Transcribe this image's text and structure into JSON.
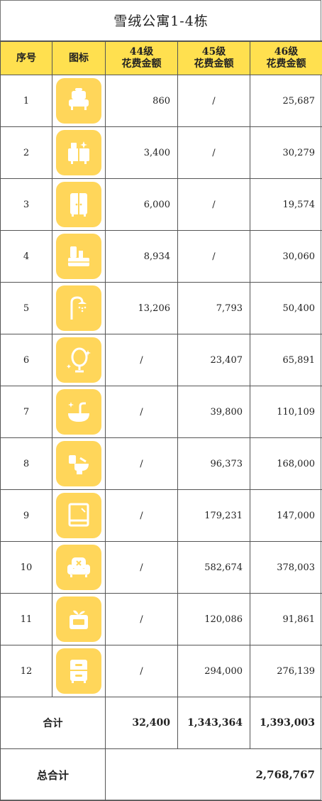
{
  "title": "雪绒公寓1-4栋",
  "header": {
    "col_index": "序号",
    "col_icon": "图标",
    "col_44_level": "44级",
    "col_44_sub": "花费金额",
    "col_45_level": "45级",
    "col_45_sub": "花费金额",
    "col_46_level": "46级",
    "col_46_sub": "花费金额"
  },
  "rows": [
    {
      "idx": "1",
      "icon": "sofa-icon",
      "v44": "860",
      "v45": "/",
      "v46": "25,687"
    },
    {
      "idx": "2",
      "icon": "cabinet-sparkle-icon",
      "v44": "3,400",
      "v45": "/",
      "v46": "30,279"
    },
    {
      "idx": "3",
      "icon": "wardrobe-icon",
      "v44": "6,000",
      "v45": "/",
      "v46": "19,574"
    },
    {
      "idx": "4",
      "icon": "kitchen-icon",
      "v44": "8,934",
      "v45": "/",
      "v46": "30,060"
    },
    {
      "idx": "5",
      "icon": "shower-icon",
      "v44": "13,206",
      "v45": "7,793",
      "v46": "50,400"
    },
    {
      "idx": "6",
      "icon": "mirror-icon",
      "v44": "/",
      "v45": "23,407",
      "v46": "65,891"
    },
    {
      "idx": "7",
      "icon": "washbasin-icon",
      "v44": "/",
      "v45": "39,800",
      "v46": "110,109"
    },
    {
      "idx": "8",
      "icon": "toilet-icon",
      "v44": "/",
      "v45": "96,373",
      "v46": "168,000"
    },
    {
      "idx": "9",
      "icon": "picture-frame-icon",
      "v44": "/",
      "v45": "179,231",
      "v46": "147,000"
    },
    {
      "idx": "10",
      "icon": "armchair-icon",
      "v44": "/",
      "v45": "582,674",
      "v46": "378,003"
    },
    {
      "idx": "11",
      "icon": "fruit-box-icon",
      "v44": "/",
      "v45": "120,086",
      "v46": "91,861"
    },
    {
      "idx": "12",
      "icon": "drawer-icon",
      "v44": "/",
      "v45": "294,000",
      "v46": "276,139"
    }
  ],
  "subtotal": {
    "label": "合计",
    "v44": "32,400",
    "v45": "1,343,364",
    "v46": "1,393,003"
  },
  "grand_total": {
    "label": "总合计",
    "value": "2,768,767"
  },
  "colors": {
    "header_bg": "#ffe04f",
    "icon_bg": "#ffd65a",
    "icon_fg": "#ffffff"
  }
}
